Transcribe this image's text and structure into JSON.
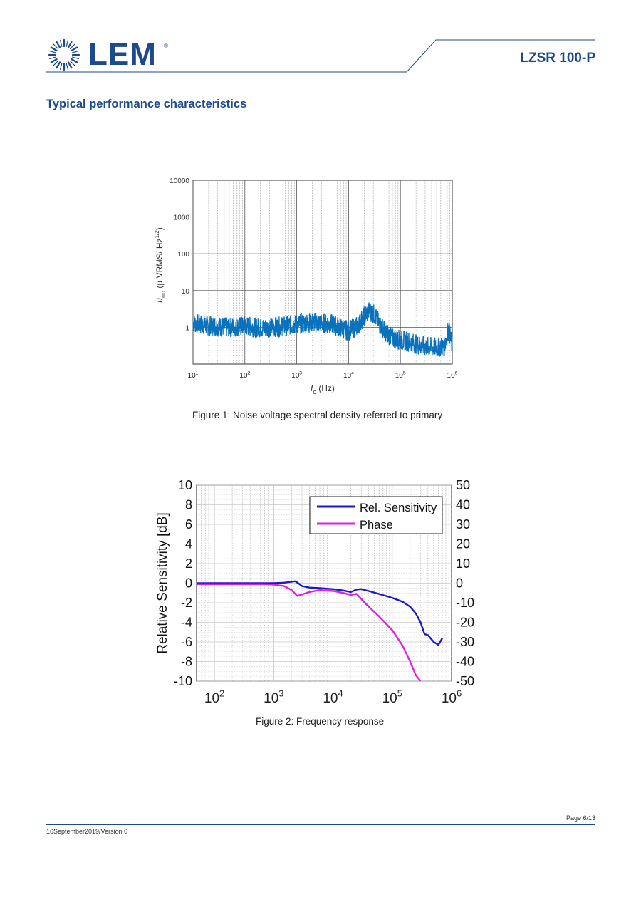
{
  "header": {
    "logo_text": "LEM",
    "logo_registered": "®",
    "product": "LZSR 100-P"
  },
  "section_title": "Typical performance characteristics",
  "figures": {
    "fig1_caption": "Figure 1: Noise voltage spectral density referred to primary",
    "fig2_caption": "Figure 2: Frequency response"
  },
  "footer": {
    "page": "Page 6/13",
    "version": "16September2019/Version 0"
  },
  "colors": {
    "brand": "#1c4a8c",
    "noise": "#0a72bd",
    "sensitivity": "#1a1ac8",
    "phase": "#e020e0"
  },
  "chart_data": [
    {
      "type": "line",
      "title": "",
      "xlabel": "f c (Hz)",
      "ylabel": "u no (µ VRMS/ Hz 1/2)",
      "xscale": "log",
      "yscale": "log",
      "xlim": [
        10,
        1000000
      ],
      "ylim": [
        0.1,
        10000
      ],
      "x_ticks": [
        "10^1",
        "10^2",
        "10^3",
        "10^4",
        "10^5",
        "10^6"
      ],
      "y_ticks": [
        "1",
        "10",
        "100",
        "1000",
        "10000"
      ],
      "grid": true,
      "series": [
        {
          "x": [
            10,
            15,
            20,
            30,
            50,
            80,
            100,
            150,
            200,
            300,
            500,
            800,
            1000,
            1500,
            2000,
            3000,
            5000,
            8000,
            10000,
            15000,
            20000,
            25000,
            30000,
            40000,
            50000,
            70000,
            100000,
            150000,
            200000,
            300000,
            500000,
            700000,
            850000,
            1000000
          ],
          "y": [
            1.3,
            1.2,
            1.1,
            1.05,
            1.0,
            1.05,
            1.1,
            1.0,
            0.95,
            1.0,
            1.05,
            1.15,
            1.2,
            1.3,
            1.35,
            1.3,
            1.2,
            0.9,
            0.8,
            1.1,
            2.0,
            2.8,
            2.4,
            1.2,
            0.8,
            0.5,
            0.45,
            0.4,
            0.35,
            0.3,
            0.28,
            0.3,
            0.9,
            0.3
          ]
        }
      ]
    },
    {
      "type": "line",
      "title": "",
      "ylabel": "Relative Sensitivity [dB]",
      "xscale": "log",
      "xlim": [
        50,
        1000000
      ],
      "ylim": [
        -10,
        10
      ],
      "y2lim": [
        -50,
        50
      ],
      "x_ticks": [
        "10^2",
        "10^3",
        "10^4",
        "10^5",
        "10^6"
      ],
      "y_ticks": [
        "10",
        "8",
        "6",
        "4",
        "2",
        "0",
        "-2",
        "-4",
        "-6",
        "-8",
        "-10"
      ],
      "y2_ticks": [
        "50",
        "40",
        "30",
        "20",
        "10",
        "0",
        "-10",
        "-20",
        "-30",
        "-40",
        "-50"
      ],
      "legend_position": "top-right",
      "grid": true,
      "series": [
        {
          "name": "Rel. Sensitivity",
          "x": [
            50,
            100,
            300,
            700,
            1000,
            1500,
            2000,
            2300,
            2600,
            3000,
            4000,
            6000,
            10000,
            15000,
            20000,
            25000,
            30000,
            40000,
            60000,
            100000,
            150000,
            200000,
            250000,
            300000,
            350000,
            400000,
            500000,
            600000,
            700000
          ],
          "y": [
            0.0,
            0.0,
            0.0,
            0.0,
            0.0,
            0.05,
            0.15,
            0.2,
            0.0,
            -0.3,
            -0.45,
            -0.5,
            -0.6,
            -0.75,
            -0.9,
            -0.65,
            -0.6,
            -0.8,
            -1.1,
            -1.5,
            -1.9,
            -2.4,
            -3.1,
            -4.0,
            -5.2,
            -5.3,
            -6.0,
            -6.3,
            -5.6
          ]
        },
        {
          "name": "Phase",
          "x": [
            50,
            100,
            300,
            700,
            1000,
            1500,
            2000,
            2500,
            3000,
            4000,
            6000,
            10000,
            15000,
            20000,
            25000,
            30000,
            40000,
            60000,
            100000,
            150000,
            200000,
            250000,
            300000
          ],
          "y": [
            -0.5,
            -0.5,
            -0.5,
            -0.5,
            -0.7,
            -1.5,
            -3.5,
            -6.5,
            -5.8,
            -4.5,
            -3.5,
            -4.0,
            -5.0,
            -6.0,
            -5.5,
            -8.0,
            -12.0,
            -17.0,
            -24.0,
            -32.0,
            -40.0,
            -47.0,
            -52.0
          ]
        }
      ]
    }
  ]
}
